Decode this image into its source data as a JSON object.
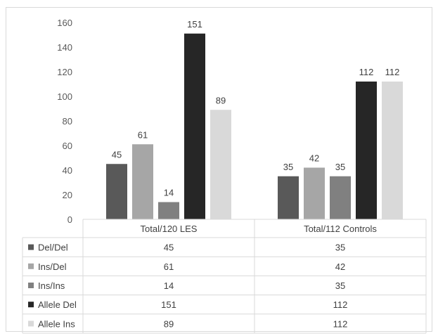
{
  "chart_data": {
    "type": "bar",
    "categories": [
      "Total/120 LES",
      "Total/112 Controls"
    ],
    "series": [
      {
        "name": "Del/Del",
        "values": [
          45,
          35
        ],
        "color": "#595959"
      },
      {
        "name": "Ins/Del",
        "values": [
          61,
          42
        ],
        "color": "#a6a6a6"
      },
      {
        "name": "Ins/Ins",
        "values": [
          14,
          35
        ],
        "color": "#808080"
      },
      {
        "name": "Allele Del",
        "values": [
          151,
          112
        ],
        "color": "#262626"
      },
      {
        "name": "Allele Ins",
        "values": [
          89,
          112
        ],
        "color": "#d9d9d9"
      }
    ],
    "ylim": [
      0,
      160
    ],
    "yticks": [
      0,
      20,
      40,
      60,
      80,
      100,
      120,
      140,
      160
    ],
    "grid": false,
    "legend": "data-table-below"
  }
}
